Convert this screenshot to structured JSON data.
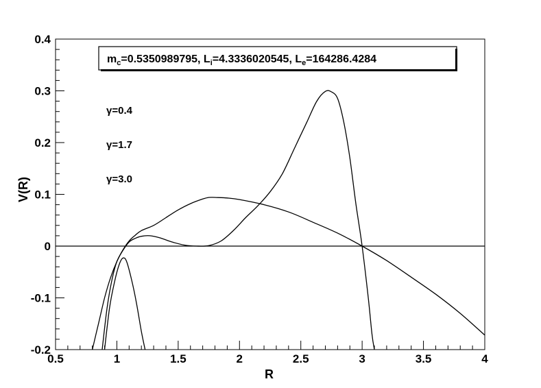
{
  "chart_data": {
    "type": "line",
    "title": "",
    "xlabel": "R",
    "ylabel": "V(R)",
    "xlim": [
      0.5,
      4.0
    ],
    "ylim": [
      -0.2,
      0.4
    ],
    "grid": false,
    "legend_position": "top-left",
    "x_ticks": [
      "0.5",
      "1",
      "1.5",
      "2",
      "2.5",
      "3",
      "3.5",
      "4"
    ],
    "y_ticks": [
      "-0.2",
      "-0.1",
      "0",
      "0.1",
      "0.2",
      "0.3",
      "0.4"
    ],
    "parameters": {
      "m_sym": "m",
      "m_sub": "c",
      "m_val": "=0.5350989795, ",
      "li_sym": "L",
      "li_sub": "i",
      "li_val": "=4.3336020545, ",
      "le_sym": "L",
      "le_sub": "e",
      "le_val": "=164286.4284"
    },
    "series": [
      {
        "name": "γ=0.4",
        "points": [
          [
            0.9,
            -0.2
          ],
          [
            0.94,
            -0.12
          ],
          [
            0.98,
            -0.07
          ],
          [
            1.02,
            -0.035
          ],
          [
            1.05,
            -0.023
          ],
          [
            1.08,
            -0.03
          ],
          [
            1.12,
            -0.065
          ],
          [
            1.16,
            -0.11
          ],
          [
            1.2,
            -0.165
          ],
          [
            1.23,
            -0.2
          ]
        ]
      },
      {
        "name": "γ=1.7",
        "points": [
          [
            0.8,
            -0.2
          ],
          [
            0.85,
            -0.15
          ],
          [
            0.9,
            -0.1
          ],
          [
            0.95,
            -0.06
          ],
          [
            1.0,
            -0.03
          ],
          [
            1.05,
            -0.007
          ],
          [
            1.1,
            0.01
          ],
          [
            1.15,
            0.021
          ],
          [
            1.2,
            0.03
          ],
          [
            1.3,
            0.04
          ],
          [
            1.4,
            0.055
          ],
          [
            1.5,
            0.07
          ],
          [
            1.6,
            0.082
          ],
          [
            1.7,
            0.091
          ],
          [
            1.75,
            0.094
          ],
          [
            1.8,
            0.094
          ],
          [
            1.9,
            0.093
          ],
          [
            2.0,
            0.09
          ],
          [
            2.2,
            0.08
          ],
          [
            2.4,
            0.066
          ],
          [
            2.6,
            0.046
          ],
          [
            2.8,
            0.025
          ],
          [
            3.0,
            0.0
          ],
          [
            3.2,
            -0.028
          ],
          [
            3.4,
            -0.06
          ],
          [
            3.6,
            -0.093
          ],
          [
            3.8,
            -0.13
          ],
          [
            4.0,
            -0.172
          ]
        ]
      },
      {
        "name": "γ=3.0",
        "points": [
          [
            0.88,
            -0.2
          ],
          [
            0.92,
            -0.12
          ],
          [
            0.96,
            -0.065
          ],
          [
            1.0,
            -0.03
          ],
          [
            1.05,
            -0.008
          ],
          [
            1.1,
            0.008
          ],
          [
            1.15,
            0.015
          ],
          [
            1.2,
            0.019
          ],
          [
            1.27,
            0.02
          ],
          [
            1.35,
            0.016
          ],
          [
            1.45,
            0.008
          ],
          [
            1.55,
            0.002
          ],
          [
            1.65,
            0.0
          ],
          [
            1.75,
            0.001
          ],
          [
            1.85,
            0.01
          ],
          [
            1.95,
            0.03
          ],
          [
            2.05,
            0.055
          ],
          [
            2.15,
            0.078
          ],
          [
            2.25,
            0.105
          ],
          [
            2.35,
            0.14
          ],
          [
            2.45,
            0.19
          ],
          [
            2.55,
            0.24
          ],
          [
            2.63,
            0.28
          ],
          [
            2.7,
            0.299
          ],
          [
            2.75,
            0.298
          ],
          [
            2.8,
            0.285
          ],
          [
            2.85,
            0.24
          ],
          [
            2.9,
            0.17
          ],
          [
            2.95,
            0.08
          ],
          [
            3.0,
            0.0
          ],
          [
            3.05,
            -0.1
          ],
          [
            3.08,
            -0.17
          ],
          [
            3.1,
            -0.2
          ]
        ]
      }
    ]
  }
}
